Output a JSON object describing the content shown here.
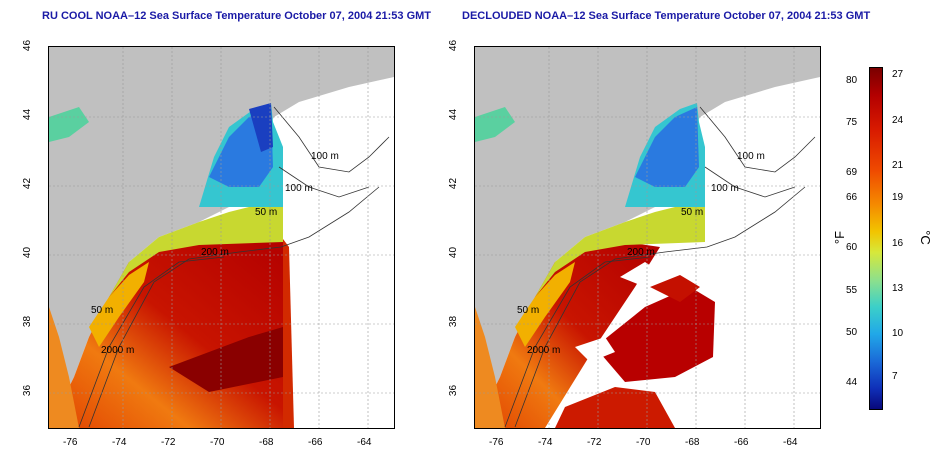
{
  "panels": [
    {
      "title": "RU COOL NOAA–12 Sea Surface Temperature October 07, 2004 21:53 GMT",
      "variant": "raw"
    },
    {
      "title": "DECLOUDED NOAA–12 Sea Surface Temperature October 07, 2004 21:53 GMT",
      "variant": "declouded"
    }
  ],
  "axes": {
    "x_ticks": [
      "-76",
      "-74",
      "-72",
      "-70",
      "-68",
      "-66",
      "-64"
    ],
    "y_ticks": [
      "36",
      "38",
      "40",
      "42",
      "44",
      "46"
    ]
  },
  "contour_labels": [
    "100 m",
    "100 m",
    "50 m",
    "200 m",
    "50 m",
    "2000 m"
  ],
  "colorbar": {
    "fahrenheit_label": "°F",
    "celsius_label": "°C",
    "fahrenheit_ticks": [
      "80",
      "75",
      "69",
      "66",
      "60",
      "55",
      "50",
      "44"
    ],
    "celsius_ticks": [
      "27",
      "24",
      "21",
      "19",
      "16",
      "13",
      "10",
      "7"
    ]
  },
  "colors": {
    "land": "#c0c0c0",
    "title": "#1a1aa6",
    "warm": "#c81400",
    "cool": "#2a7ae0"
  }
}
